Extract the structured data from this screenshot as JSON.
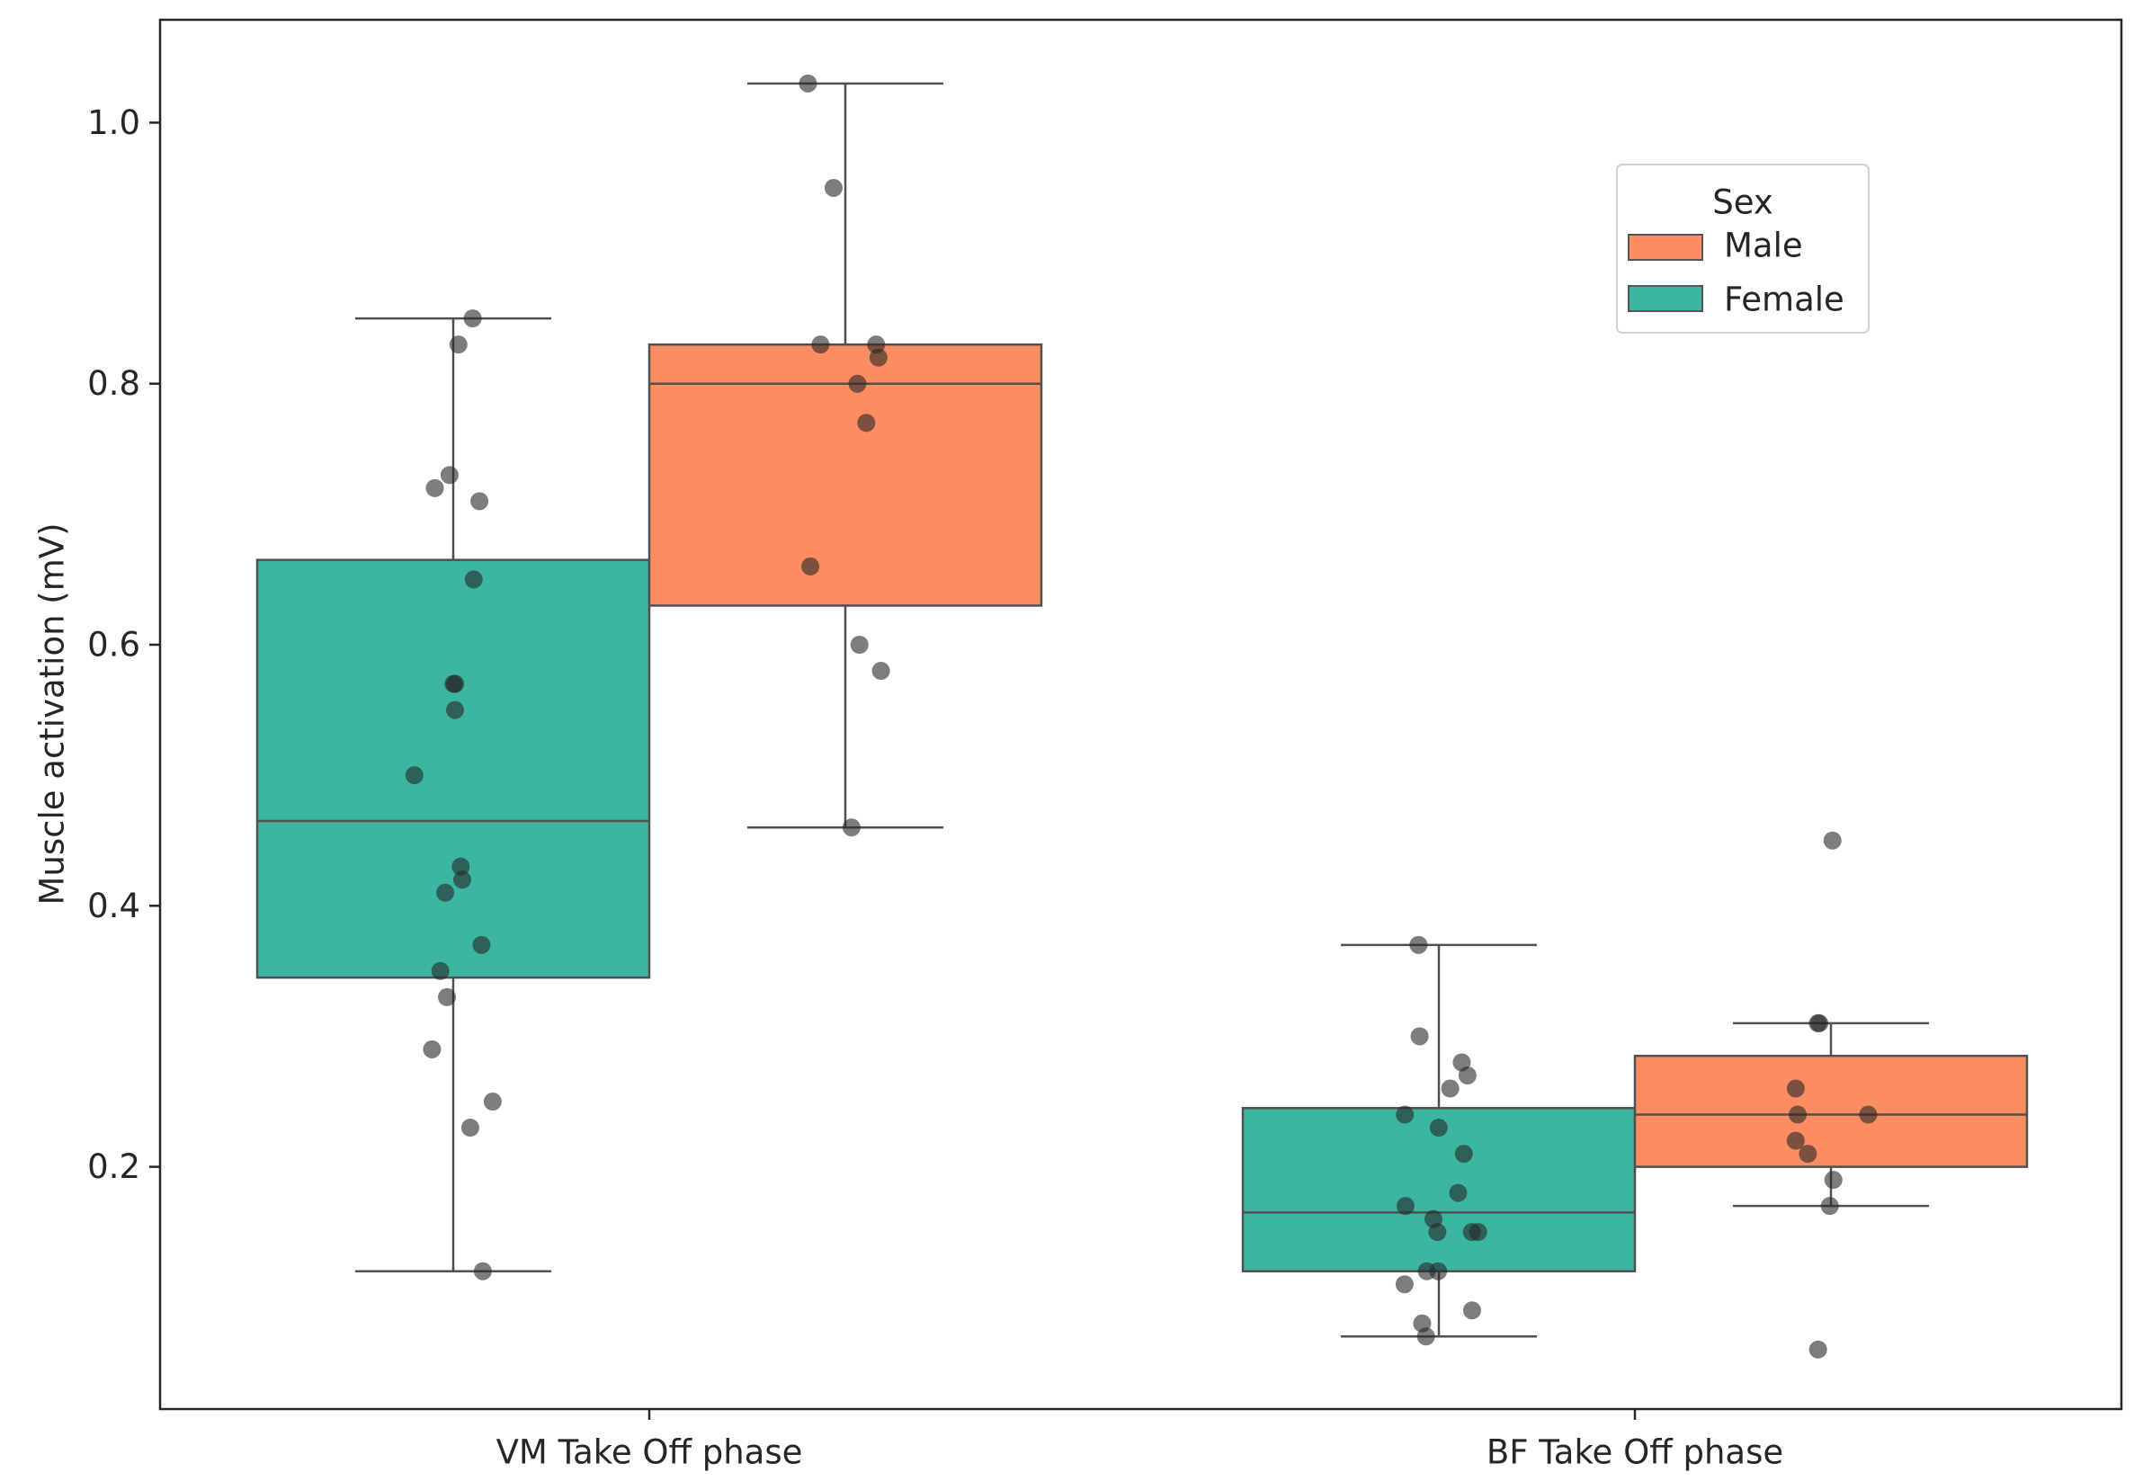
{
  "chart_data": {
    "type": "box",
    "title": "",
    "xlabel": "",
    "ylabel": "Muscle activation (mV)",
    "ylim": [
      0.03,
      1.07
    ],
    "yticks": [
      0.2,
      0.4,
      0.6,
      0.8,
      1.0
    ],
    "ytick_labels": [
      "0.2",
      "0.4",
      "0.6",
      "0.8",
      "1.0"
    ],
    "categories": [
      "VM Take Off phase",
      "BF Take Off phase"
    ],
    "legend": {
      "title": "Sex",
      "position": "upper-right",
      "entries": [
        {
          "label": "Male",
          "color": "#fc8d62"
        },
        {
          "label": "Female",
          "color": "#3cb6a0"
        }
      ]
    },
    "series": [
      {
        "name": "Female",
        "color": "#3cb6a0",
        "boxes": [
          {
            "category": "VM Take Off phase",
            "whisker_low": 0.12,
            "q1": 0.345,
            "median": 0.465,
            "q3": 0.665,
            "whisker_high": 0.85
          },
          {
            "category": "BF Take Off phase",
            "whisker_low": 0.07,
            "q1": 0.12,
            "median": 0.165,
            "q3": 0.245,
            "whisker_high": 0.37
          }
        ],
        "points": [
          {
            "category": "VM Take Off phase",
            "values": [
              0.85,
              0.83,
              0.73,
              0.72,
              0.71,
              0.65,
              0.57,
              0.57,
              0.55,
              0.5,
              0.43,
              0.42,
              0.41,
              0.37,
              0.35,
              0.33,
              0.29,
              0.25,
              0.23,
              0.12
            ]
          },
          {
            "category": "BF Take Off phase",
            "values": [
              0.37,
              0.3,
              0.28,
              0.27,
              0.26,
              0.24,
              0.23,
              0.21,
              0.18,
              0.17,
              0.16,
              0.15,
              0.15,
              0.15,
              0.12,
              0.12,
              0.11,
              0.09,
              0.08,
              0.07
            ]
          }
        ]
      },
      {
        "name": "Male",
        "color": "#fc8d62",
        "boxes": [
          {
            "category": "VM Take Off phase",
            "whisker_low": 0.46,
            "q1": 0.63,
            "median": 0.8,
            "q3": 0.83,
            "whisker_high": 1.03
          },
          {
            "category": "BF Take Off phase",
            "whisker_low": 0.17,
            "q1": 0.2,
            "median": 0.24,
            "q3": 0.285,
            "whisker_high": 0.31
          }
        ],
        "points": [
          {
            "category": "VM Take Off phase",
            "values": [
              1.03,
              0.95,
              0.83,
              0.83,
              0.82,
              0.8,
              0.77,
              0.66,
              0.6,
              0.58,
              0.46
            ]
          },
          {
            "category": "BF Take Off phase",
            "values": [
              0.45,
              0.31,
              0.31,
              0.26,
              0.24,
              0.24,
              0.22,
              0.21,
              0.19,
              0.17,
              0.06
            ]
          }
        ]
      }
    ]
  }
}
